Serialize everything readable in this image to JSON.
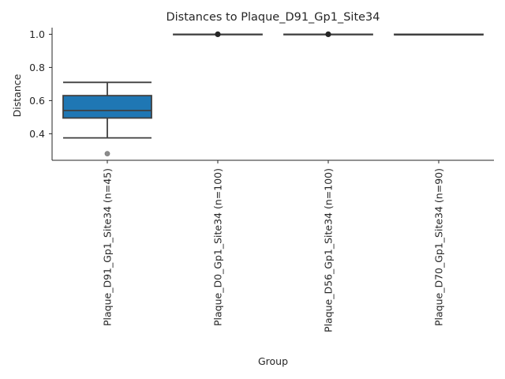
{
  "chart_data": {
    "type": "box",
    "title": "Distances to Plaque_D91_Gp1_Site34",
    "xlabel": "Group",
    "ylabel": "Distance",
    "ylim": [
      0.24,
      1.04
    ],
    "yticks": [
      0.4,
      0.6,
      0.8,
      1.0
    ],
    "ytick_labels": [
      "0.4",
      "0.6",
      "0.8",
      "1.0"
    ],
    "grid": false,
    "categories": [
      "Plaque_D91_Gp1_Site34 (n=45)",
      "Plaque_D0_Gp1_Site34 (n=100)",
      "Plaque_D56_Gp1_Site34 (n=100)",
      "Plaque_D70_Gp1_Site34 (n=90)"
    ],
    "boxes": [
      {
        "whisker_low": 0.375,
        "q1": 0.495,
        "median": 0.54,
        "q3": 0.63,
        "whisker_high": 0.71,
        "outliers": [
          0.28
        ],
        "fill": "#1f77b4"
      },
      {
        "whisker_low": 1.0,
        "q1": 1.0,
        "median": 1.0,
        "q3": 1.0,
        "whisker_high": 1.0,
        "outliers": [
          1.0
        ],
        "fill": "#ff7f0e"
      },
      {
        "whisker_low": 1.0,
        "q1": 1.0,
        "median": 1.0,
        "q3": 1.0,
        "whisker_high": 1.0,
        "outliers": [
          1.0
        ],
        "fill": "#2ca02c"
      },
      {
        "whisker_low": 0.997,
        "q1": 0.997,
        "median": 0.998,
        "q3": 1.0,
        "whisker_high": 1.0,
        "outliers": [],
        "fill": "#d62728"
      }
    ],
    "colors": {
      "line": "#3f3f3f",
      "outlier": "#8c8c8c",
      "axis": "#262626"
    }
  }
}
